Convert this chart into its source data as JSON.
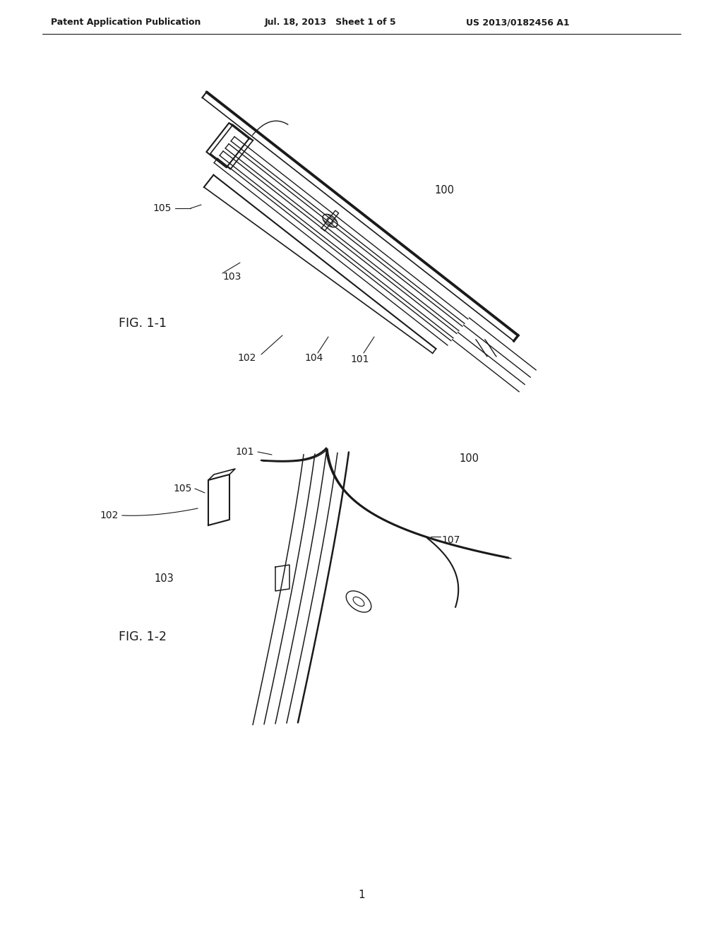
{
  "bg_color": "#ffffff",
  "line_color": "#1a1a1a",
  "header_left": "Patent Application Publication",
  "header_mid": "Jul. 18, 2013   Sheet 1 of 5",
  "header_right": "US 2013/0182456 A1",
  "fig1_label": "FIG. 1-1",
  "fig2_label": "FIG. 1-2",
  "page_num": "1"
}
